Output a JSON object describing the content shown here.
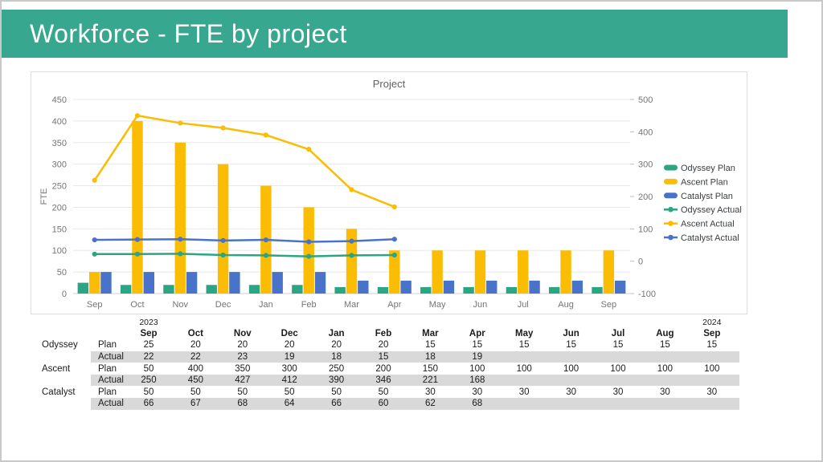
{
  "slide": {
    "title": "Workforce - FTE by project"
  },
  "colors": {
    "banner": "#37a88f",
    "odyssey": "#2ba584",
    "ascent": "#fbbc04",
    "catalyst": "#4973c8",
    "grid": "#e8e8e8",
    "baseline": "#d2d2d2",
    "axis_text": "#757575",
    "legend_text": "#3c4043",
    "table_band": "#d9d9d9",
    "table_text": "#1b1b1b"
  },
  "chart_data": {
    "type": "bar",
    "subtype": "combo-bar-line",
    "title": "Project",
    "ylabel": "FTE",
    "categories": [
      "Sep",
      "Oct",
      "Nov",
      "Dec",
      "Jan",
      "Feb",
      "Mar",
      "Apr",
      "May",
      "Jun",
      "Jul",
      "Aug",
      "Sep"
    ],
    "left_axis": {
      "min": 0,
      "max": 450,
      "step": 50,
      "ticks": [
        "450",
        "400",
        "350",
        "300",
        "250",
        "200",
        "150",
        "100",
        "50",
        "0"
      ]
    },
    "right_axis": {
      "min": -100,
      "max": 500,
      "step": 100,
      "ticks": [
        "500",
        "400",
        "300",
        "200",
        "100",
        "0",
        "-100"
      ]
    },
    "grid": true,
    "legend_position": "right",
    "series": [
      {
        "name": "Odyssey Plan",
        "type": "bar",
        "axis": "left",
        "color_key": "odyssey",
        "values": [
          25,
          20,
          20,
          20,
          20,
          20,
          15,
          15,
          15,
          15,
          15,
          15,
          15
        ]
      },
      {
        "name": "Ascent Plan",
        "type": "bar",
        "axis": "left",
        "color_key": "ascent",
        "values": [
          50,
          400,
          350,
          300,
          250,
          200,
          150,
          100,
          100,
          100,
          100,
          100,
          100
        ]
      },
      {
        "name": "Catalyst Plan",
        "type": "bar",
        "axis": "left",
        "color_key": "catalyst",
        "values": [
          50,
          50,
          50,
          50,
          50,
          50,
          30,
          30,
          30,
          30,
          30,
          30,
          30
        ]
      },
      {
        "name": "Odyssey Actual",
        "type": "line",
        "axis": "right",
        "color_key": "odyssey",
        "values": [
          22,
          22,
          23,
          19,
          18,
          15,
          18,
          19
        ]
      },
      {
        "name": "Ascent Actual",
        "type": "line",
        "axis": "right",
        "color_key": "ascent",
        "values": [
          250,
          450,
          427,
          412,
          390,
          346,
          221,
          168
        ]
      },
      {
        "name": "Catalyst Actual",
        "type": "line",
        "axis": "right",
        "color_key": "catalyst",
        "values": [
          66,
          67,
          68,
          64,
          66,
          60,
          62,
          68
        ]
      }
    ]
  },
  "table": {
    "columns": [
      "Sep",
      "Oct",
      "Nov",
      "Dec",
      "Jan",
      "Feb",
      "Mar",
      "Apr",
      "May",
      "Jun",
      "Jul",
      "Aug",
      "Sep"
    ],
    "year_labels": [
      {
        "text": "2023",
        "col": 0
      },
      {
        "text": "2024",
        "col": 12
      }
    ],
    "groups": [
      {
        "name": "Odyssey",
        "rows": [
          {
            "label": "Plan",
            "shaded": false,
            "values": [
              "25",
              "20",
              "20",
              "20",
              "20",
              "20",
              "15",
              "15",
              "15",
              "15",
              "15",
              "15",
              "15"
            ]
          },
          {
            "label": "Actual",
            "shaded": true,
            "values": [
              "22",
              "22",
              "23",
              "19",
              "18",
              "15",
              "18",
              "19"
            ]
          }
        ]
      },
      {
        "name": "Ascent",
        "rows": [
          {
            "label": "Plan",
            "shaded": false,
            "values": [
              "50",
              "400",
              "350",
              "300",
              "250",
              "200",
              "150",
              "100",
              "100",
              "100",
              "100",
              "100",
              "100"
            ]
          },
          {
            "label": "Actual",
            "shaded": true,
            "values": [
              "250",
              "450",
              "427",
              "412",
              "390",
              "346",
              "221",
              "168"
            ]
          }
        ]
      },
      {
        "name": "Catalyst",
        "rows": [
          {
            "label": "Plan",
            "shaded": false,
            "values": [
              "50",
              "50",
              "50",
              "50",
              "50",
              "50",
              "30",
              "30",
              "30",
              "30",
              "30",
              "30",
              "30"
            ]
          },
          {
            "label": "Actual",
            "shaded": true,
            "values": [
              "66",
              "67",
              "68",
              "64",
              "66",
              "60",
              "62",
              "68"
            ]
          }
        ]
      }
    ]
  }
}
